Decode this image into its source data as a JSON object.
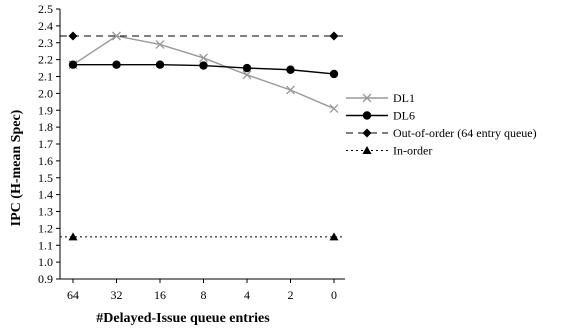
{
  "chart_data": {
    "type": "line",
    "categories": [
      "64",
      "32",
      "16",
      "8",
      "4",
      "2",
      "0"
    ],
    "xlabel": "#Delayed-Issue queue entries",
    "ylabel": "IPC (H-mean Spec)",
    "ylim": [
      0.9,
      2.5
    ],
    "yticks": [
      "0.9",
      "1.0",
      "1.1",
      "1.2",
      "1.3",
      "1.4",
      "1.5",
      "1.6",
      "1.7",
      "1.8",
      "1.9",
      "2.0",
      "2.1",
      "2.2",
      "2.3",
      "2.4",
      "2.5"
    ],
    "grid": false,
    "legend_position": "right",
    "series": [
      {
        "name": "DL1",
        "values": [
          2.17,
          2.34,
          2.29,
          2.21,
          2.11,
          2.02,
          1.91
        ],
        "style": "solid",
        "marker": "x",
        "color": "#999999"
      },
      {
        "name": "DL6",
        "values": [
          2.17,
          2.17,
          2.17,
          2.165,
          2.15,
          2.14,
          2.115
        ],
        "style": "solid",
        "marker": "circle",
        "color": "#000000"
      },
      {
        "name": "Out-of-order (64 entry queue)",
        "values": [
          2.34,
          null,
          null,
          null,
          null,
          null,
          2.34
        ],
        "style": "dashed",
        "marker": "diamond",
        "color": "#000000",
        "flat": true
      },
      {
        "name": "In-order",
        "values": [
          1.15,
          null,
          null,
          null,
          null,
          null,
          1.15
        ],
        "style": "dotted",
        "marker": "triangle",
        "color": "#000000",
        "flat": true
      }
    ]
  }
}
